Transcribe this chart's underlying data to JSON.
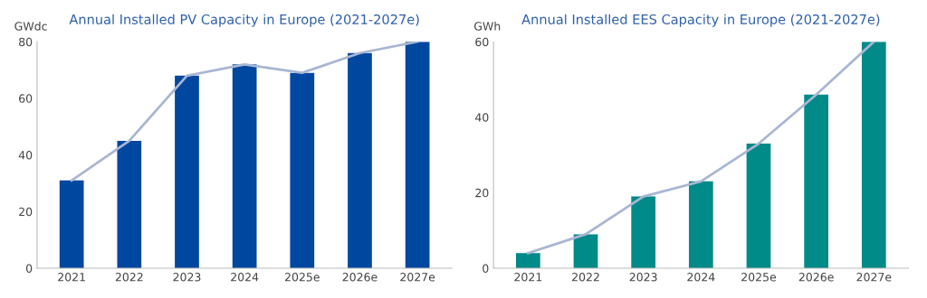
{
  "chart_data": [
    {
      "type": "bar",
      "title": "Annual Installed PV Capacity in Europe (2021-2027e)",
      "ylabel": "GWdc",
      "categories": [
        "2021",
        "2022",
        "2023",
        "2024",
        "2025e",
        "2026e",
        "2027e"
      ],
      "series": [
        {
          "color": "#0047a0",
          "values": [
            31,
            45,
            68,
            72,
            69,
            76,
            80
          ]
        },
        {
          "type": "line",
          "color": "#a9b6d3",
          "values": [
            31,
            45,
            68,
            72,
            69,
            76,
            80
          ]
        }
      ],
      "ylim": [
        0,
        80
      ],
      "yticks": [
        0,
        20,
        40,
        60,
        80
      ],
      "grid": false,
      "legend": false,
      "marker": "none",
      "line_style": "solid"
    },
    {
      "type": "bar",
      "title": "Annual Installed EES Capacity in Europe (2021-2027e)",
      "ylabel": "GWh",
      "categories": [
        "2021",
        "2022",
        "2023",
        "2024",
        "2025e",
        "2026e",
        "2027e"
      ],
      "series": [
        {
          "color": "#008a88",
          "values": [
            4,
            9,
            19,
            23,
            33,
            46,
            60
          ]
        },
        {
          "type": "line",
          "color": "#a9b6d3",
          "values": [
            4,
            9,
            19,
            23,
            33,
            46,
            60
          ]
        }
      ],
      "ylim": [
        0,
        60
      ],
      "yticks": [
        0,
        20,
        40,
        60
      ],
      "grid": false,
      "legend": false,
      "marker": "none",
      "line_style": "solid"
    }
  ]
}
